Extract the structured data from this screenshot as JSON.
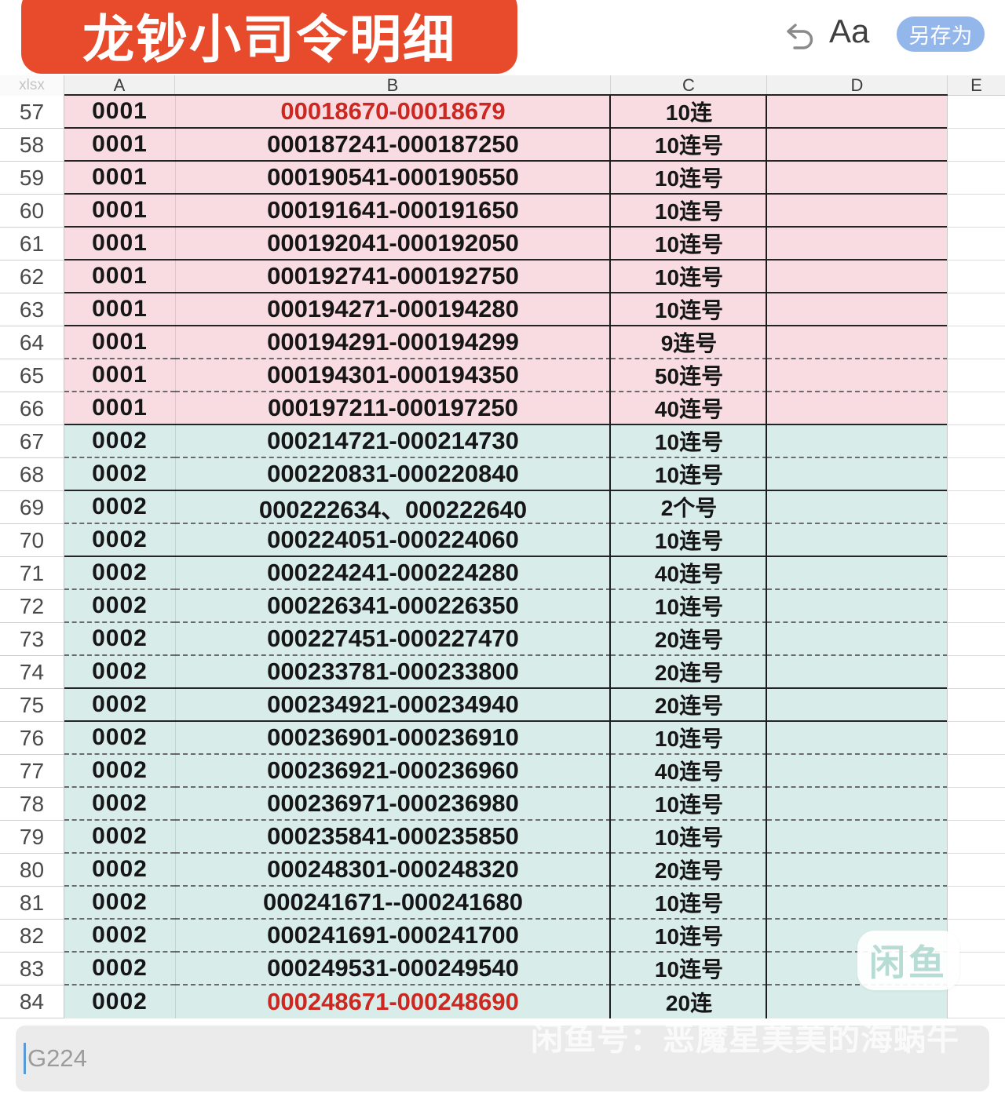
{
  "toolbar": {
    "title": "龙钞小司令明细",
    "font_label": "Aa",
    "save_as": "另存为"
  },
  "sheet": {
    "corner": "xlsx",
    "col_headers": [
      "A",
      "B",
      "C",
      "D",
      "E"
    ],
    "rows": [
      {
        "n": "57",
        "a": "0001",
        "b": "00018670-00018679",
        "c": "10连",
        "sec": "pink",
        "red": true,
        "div": "solid"
      },
      {
        "n": "58",
        "a": "0001",
        "b": "000187241-000187250",
        "c": "10连号",
        "sec": "pink",
        "red": false,
        "div": "solid"
      },
      {
        "n": "59",
        "a": "0001",
        "b": "000190541-000190550",
        "c": "10连号",
        "sec": "pink",
        "red": false,
        "div": "solid"
      },
      {
        "n": "60",
        "a": "0001",
        "b": "000191641-000191650",
        "c": "10连号",
        "sec": "pink",
        "red": false,
        "div": "solid"
      },
      {
        "n": "61",
        "a": "0001",
        "b": "000192041-000192050",
        "c": "10连号",
        "sec": "pink",
        "red": false,
        "div": "solid"
      },
      {
        "n": "62",
        "a": "0001",
        "b": "000192741-000192750",
        "c": "10连号",
        "sec": "pink",
        "red": false,
        "div": "solid"
      },
      {
        "n": "63",
        "a": "0001",
        "b": "000194271-000194280",
        "c": "10连号",
        "sec": "pink",
        "red": false,
        "div": "solid"
      },
      {
        "n": "64",
        "a": "0001",
        "b": "000194291-000194299",
        "c": "9连号",
        "sec": "pink",
        "red": false,
        "div": "dashed"
      },
      {
        "n": "65",
        "a": "0001",
        "b": "000194301-000194350",
        "c": "50连号",
        "sec": "pink",
        "red": false,
        "div": "dashed"
      },
      {
        "n": "66",
        "a": "0001",
        "b": "000197211-000197250",
        "c": "40连号",
        "sec": "pink",
        "red": false,
        "div": "solid"
      },
      {
        "n": "67",
        "a": "0002",
        "b": "000214721-000214730",
        "c": "10连号",
        "sec": "cyan",
        "red": false,
        "div": "dashed"
      },
      {
        "n": "68",
        "a": "0002",
        "b": "000220831-000220840",
        "c": "10连号",
        "sec": "cyan",
        "red": false,
        "div": "solid"
      },
      {
        "n": "69",
        "a": "0002",
        "b": "000222634、000222640",
        "c": "2个号",
        "sec": "cyan",
        "red": false,
        "div": "dashed"
      },
      {
        "n": "70",
        "a": "0002",
        "b": "000224051-000224060",
        "c": "10连号",
        "sec": "cyan",
        "red": false,
        "div": "solid"
      },
      {
        "n": "71",
        "a": "0002",
        "b": "000224241-000224280",
        "c": "40连号",
        "sec": "cyan",
        "red": false,
        "div": "dashed"
      },
      {
        "n": "72",
        "a": "0002",
        "b": "000226341-000226350",
        "c": "10连号",
        "sec": "cyan",
        "red": false,
        "div": "dashed"
      },
      {
        "n": "73",
        "a": "0002",
        "b": "000227451-000227470",
        "c": "20连号",
        "sec": "cyan",
        "red": false,
        "div": "dashed"
      },
      {
        "n": "74",
        "a": "0002",
        "b": "000233781-000233800",
        "c": "20连号",
        "sec": "cyan",
        "red": false,
        "div": "solid"
      },
      {
        "n": "75",
        "a": "0002",
        "b": "000234921-000234940",
        "c": "20连号",
        "sec": "cyan",
        "red": false,
        "div": "solid"
      },
      {
        "n": "76",
        "a": "0002",
        "b": "000236901-000236910",
        "c": "10连号",
        "sec": "cyan",
        "red": false,
        "div": "dashed"
      },
      {
        "n": "77",
        "a": "0002",
        "b": "000236921-000236960",
        "c": "40连号",
        "sec": "cyan",
        "red": false,
        "div": "dashed"
      },
      {
        "n": "78",
        "a": "0002",
        "b": "000236971-000236980",
        "c": "10连号",
        "sec": "cyan",
        "red": false,
        "div": "dashed"
      },
      {
        "n": "79",
        "a": "0002",
        "b": "000235841-000235850",
        "c": "10连号",
        "sec": "cyan",
        "red": false,
        "div": "dashed"
      },
      {
        "n": "80",
        "a": "0002",
        "b": "000248301-000248320",
        "c": "20连号",
        "sec": "cyan",
        "red": false,
        "div": "dashed"
      },
      {
        "n": "81",
        "a": "0002",
        "b": "000241671--000241680",
        "c": "10连号",
        "sec": "cyan",
        "red": false,
        "div": "dashed"
      },
      {
        "n": "82",
        "a": "0002",
        "b": "000241691-000241700",
        "c": "10连号",
        "sec": "cyan",
        "red": false,
        "div": "dashed"
      },
      {
        "n": "83",
        "a": "0002",
        "b": "000249531-000249540",
        "c": "10连号",
        "sec": "cyan",
        "red": false,
        "div": "dashed"
      },
      {
        "n": "84",
        "a": "0002",
        "b": "000248671-000248690",
        "c": "20连",
        "sec": "cyan",
        "red": true,
        "div": "none"
      }
    ]
  },
  "footer": {
    "cell_ref": "G224"
  },
  "watermark": {
    "text": "闲鱼号：恶魔星美美的海蜗牛",
    "badge": "闲鱼"
  },
  "colors": {
    "banner": "#e84b2c",
    "pink_fill": "#f9dce1",
    "cyan_fill": "#d8edea",
    "red_text": "#cc2821",
    "save_button": "#93b7eb"
  }
}
